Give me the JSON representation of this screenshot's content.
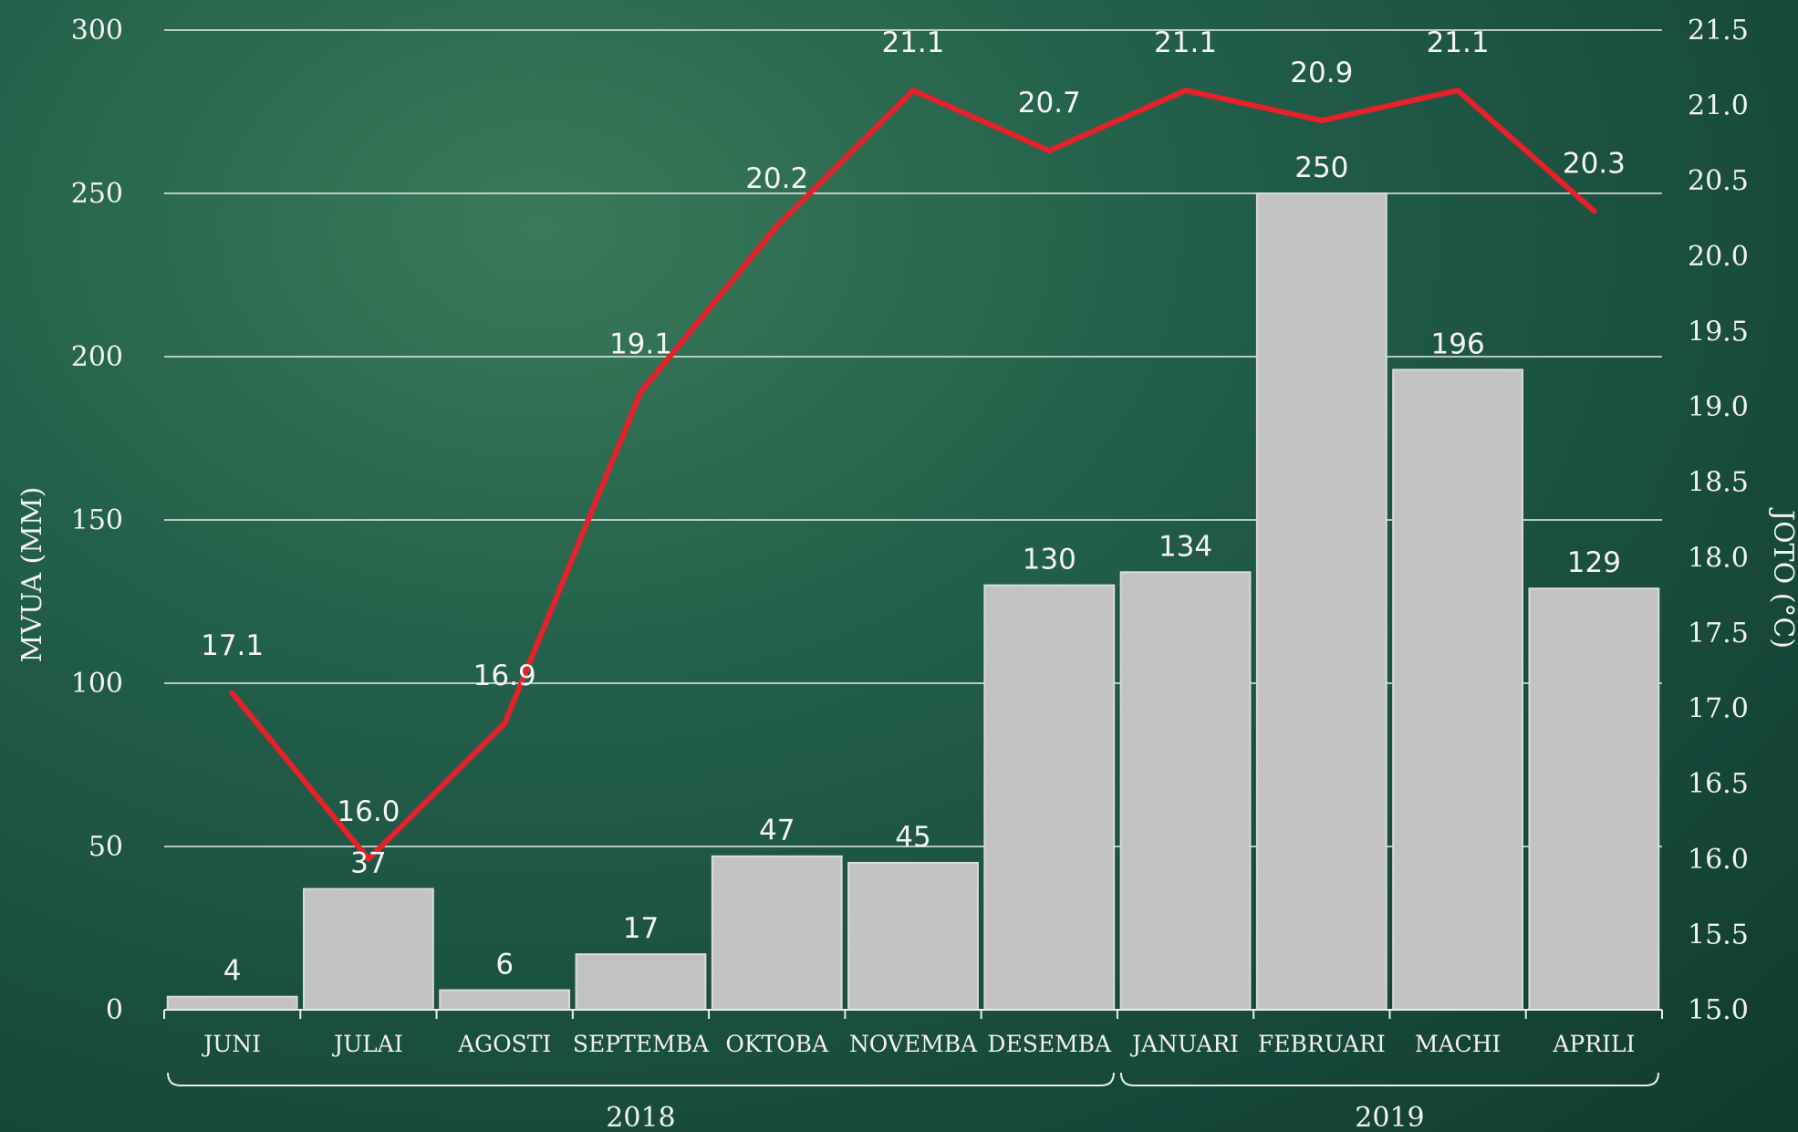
{
  "chart_data": {
    "type": "bar+line",
    "categories": [
      "JUNI",
      "JULAI",
      "AGOSTI",
      "SEPTEMBA",
      "OKTOBA",
      "NOVEMBA",
      "DESEMBA",
      "JANUARI",
      "FEBRUARI",
      "MACHI",
      "APRILI"
    ],
    "bar_values": [
      4,
      37,
      6,
      17,
      47,
      45,
      130,
      134,
      250,
      196,
      129
    ],
    "line_values": [
      17.1,
      16.0,
      16.9,
      19.1,
      20.2,
      21.1,
      20.7,
      21.1,
      20.9,
      21.1,
      20.3
    ],
    "bar_labels": [
      "4",
      "37",
      "6",
      "17",
      "47",
      "45",
      "130",
      "134",
      "250",
      "196",
      "129"
    ],
    "line_labels": [
      "17.1",
      "16.0",
      "16.9",
      "19.1",
      "20.2",
      "21.1",
      "20.7",
      "21.1",
      "20.9",
      "21.1",
      "20.3"
    ],
    "ylabel_left": "MVUA (MM)",
    "ylabel_right": "JOTO (°C)",
    "ylim_left": [
      0,
      300
    ],
    "ylim_right": [
      15.0,
      21.5
    ],
    "yticks_left": [
      "0",
      "50",
      "100",
      "150",
      "200",
      "250",
      "300"
    ],
    "yticks_right": [
      "15.0",
      "15.5",
      "16.0",
      "16.5",
      "17.0",
      "17.5",
      "18.0",
      "18.5",
      "19.0",
      "19.5",
      "20.0",
      "20.5",
      "21.0",
      "21.5"
    ],
    "groups": [
      {
        "label": "2018",
        "from": 0,
        "to": 6
      },
      {
        "label": "2019",
        "from": 7,
        "to": 10
      }
    ],
    "grid": true,
    "colors": {
      "line": "#e8202a",
      "bar": "#b8b8b8",
      "text": "#f2f2f2",
      "background": "#1d5a44"
    }
  }
}
